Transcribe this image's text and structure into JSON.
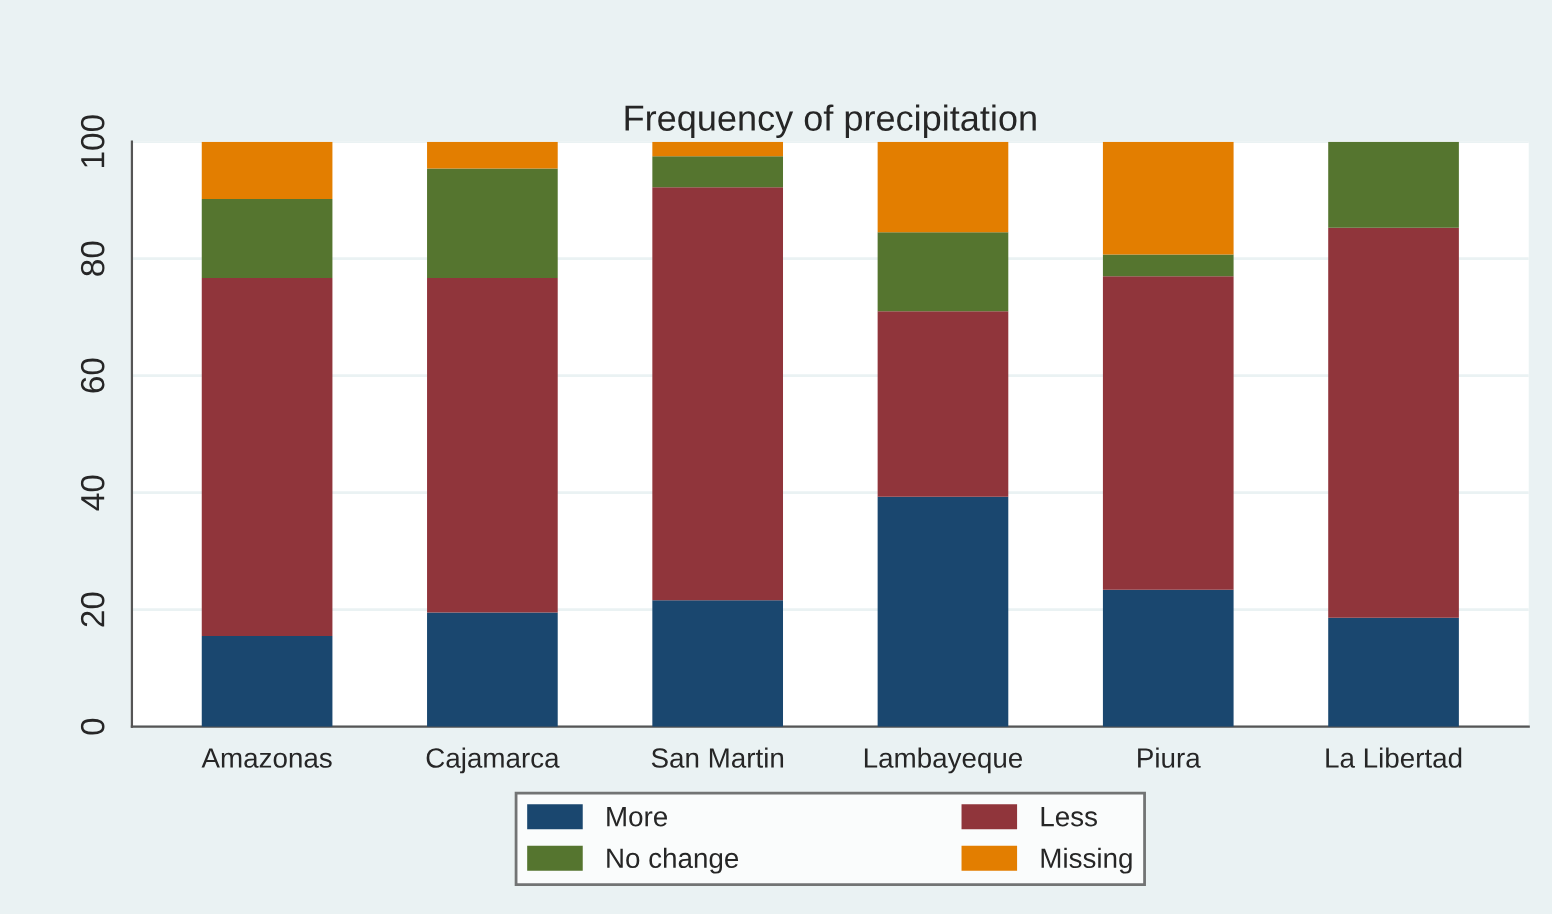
{
  "chart_data": {
    "type": "bar",
    "title": "Frequency of precipitation",
    "stacked": true,
    "categories": [
      "Amazonas",
      "Cajamarca",
      "San Martin",
      "Lambayeque",
      "Piura",
      "La Libertad"
    ],
    "series": [
      {
        "name": "More",
        "color": "#1a476f",
        "values": [
          15.5,
          19.5,
          21.6,
          39.3,
          23.4,
          18.6
        ]
      },
      {
        "name": "Less",
        "color": "#90353b",
        "values": [
          61.2,
          57.2,
          70.6,
          31.7,
          53.6,
          66.7
        ]
      },
      {
        "name": "No change",
        "color": "#55752f",
        "values": [
          13.5,
          18.7,
          5.3,
          13.5,
          3.7,
          14.7
        ]
      },
      {
        "name": "Missing",
        "color": "#e37e00",
        "values": [
          9.8,
          4.6,
          2.5,
          15.5,
          19.3,
          0
        ]
      }
    ],
    "ylim": [
      0,
      100
    ],
    "yticks": [
      0,
      20,
      40,
      60,
      80,
      100
    ],
    "grid": "y",
    "legend": "bottom"
  }
}
